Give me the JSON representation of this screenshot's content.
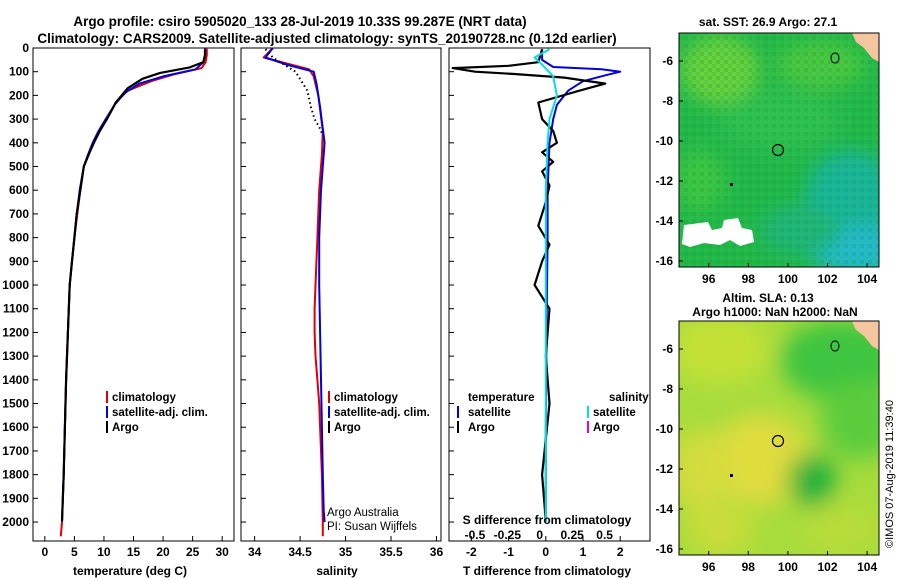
{
  "title": {
    "line1": "Argo profile: csiro 5905020_133 28-Jul-2019 10.33S 99.287E (NRT data)",
    "line2": "Climatology: CARS2009. Satellite-adjusted climatology: synTS_20190728.nc (0.12d earlier)"
  },
  "colors": {
    "climatology": "#e00000",
    "satellite": "#0000e0",
    "argo": "#000000",
    "sat_salinity": "#00e0e0",
    "argo_salinity": "#e000e0"
  },
  "depth_axis": {
    "ticks": [
      "0",
      "100",
      "200",
      "300",
      "400",
      "500",
      "600",
      "700",
      "800",
      "900",
      "1000",
      "1100",
      "1200",
      "1300",
      "1400",
      "1500",
      "1600",
      "1700",
      "1800",
      "1900",
      "2000"
    ]
  },
  "temp_panel": {
    "xlabel": "temperature (deg C)",
    "xticks": [
      "0",
      "5",
      "10",
      "15",
      "20",
      "25",
      "30"
    ],
    "legend": [
      "climatology",
      "satellite-adj. clim.",
      "Argo"
    ]
  },
  "sal_panel": {
    "xlabel": "salinity",
    "xticks": [
      "34",
      "34.5",
      "35",
      "35.5",
      "36"
    ],
    "legend": [
      "climatology",
      "satellite-adj. clim.",
      "Argo"
    ],
    "credit1": "Argo Australia",
    "credit2": "PI: Susan Wijffels"
  },
  "diff_panel": {
    "xlabel": "T difference from climatology",
    "xticks": [
      "-2",
      "-1",
      "0",
      "1",
      "2"
    ],
    "s_label": "S difference from climatology",
    "s_ticks": [
      "-0.5",
      "-0.25",
      "0",
      "0.25",
      "0.5"
    ],
    "legend_t_head": "temperature",
    "legend_s_head": "salinity",
    "legend_t": [
      "satellite",
      "Argo"
    ],
    "legend_s": [
      "satellite",
      "Argo"
    ]
  },
  "map1": {
    "title": "sat. SST: 26.9 Argo: 27.1",
    "xticks": [
      "96",
      "98",
      "100",
      "102",
      "104"
    ],
    "yticks": [
      "-6",
      "-8",
      "-10",
      "-12",
      "-14",
      "-16"
    ]
  },
  "map2": {
    "title1": "Altim. SLA: 0.13",
    "title2": "Argo h1000: NaN h2000: NaN",
    "xticks": [
      "96",
      "98",
      "100",
      "102",
      "104"
    ],
    "yticks": [
      "-6",
      "-8",
      "-10",
      "-12",
      "-14",
      "-16"
    ]
  },
  "side_label": "©IMOS 07-Aug-2019 11:39:40",
  "chart_data": [
    {
      "type": "line",
      "title": "",
      "xlabel": "temperature (deg C)",
      "ylabel": "",
      "xlim": [
        -2,
        32
      ],
      "ylim": [
        2080,
        0
      ],
      "series": [
        {
          "name": "climatology",
          "x": [
            27.4,
            27.4,
            27.2,
            26.5,
            22,
            18,
            14,
            12,
            10.5,
            9.2,
            8.2,
            7.4,
            6.6,
            6.0,
            5.5,
            5.0,
            4.6,
            4.2,
            3.9,
            3.6,
            3.4,
            3.2,
            2.9,
            2.7
          ],
          "depth": [
            0,
            30,
            60,
            85,
            110,
            140,
            180,
            230,
            300,
            350,
            400,
            450,
            500,
            600,
            700,
            800,
            900,
            1000,
            1200,
            1400,
            1600,
            1800,
            2000,
            2060
          ]
        },
        {
          "name": "satellite-adj. clim.",
          "x": [
            27.1,
            27.1,
            26.8,
            25.5,
            20,
            16,
            13.5,
            11.8,
            10.3,
            9.1,
            8.1,
            7.3,
            6.6,
            5.9,
            5.4,
            5.0,
            4.6,
            4.2,
            3.9,
            3.6,
            3.4,
            3.2,
            2.9
          ],
          "depth": [
            0,
            30,
            60,
            90,
            120,
            150,
            190,
            240,
            300,
            350,
            400,
            450,
            500,
            600,
            700,
            800,
            900,
            1000,
            1200,
            1400,
            1600,
            1800,
            2000
          ]
        },
        {
          "name": "Argo",
          "x": [
            27.1,
            27.1,
            26.8,
            24.5,
            19.5,
            16.5,
            14,
            12,
            10.5,
            9.3,
            8.3,
            7.4,
            6.6,
            6.0,
            5.4,
            5.0,
            4.6,
            4.2,
            3.9,
            3.6,
            3.4,
            3.2,
            2.9
          ],
          "depth": [
            5,
            30,
            60,
            82,
            105,
            130,
            170,
            230,
            300,
            350,
            400,
            450,
            500,
            600,
            700,
            800,
            900,
            1000,
            1200,
            1400,
            1600,
            1800,
            1995
          ]
        }
      ]
    },
    {
      "type": "line",
      "title": "",
      "xlabel": "salinity",
      "ylabel": "",
      "xlim": [
        33.85,
        36.05
      ],
      "ylim": [
        2080,
        0
      ],
      "series": [
        {
          "name": "climatology",
          "x": [
            34.2,
            34.1,
            34.4,
            34.6,
            34.65,
            34.7,
            34.75,
            34.74,
            34.71,
            34.69,
            34.67,
            34.66,
            34.66,
            34.67,
            34.69,
            34.71,
            34.72,
            34.74,
            34.75,
            34.75
          ],
          "depth": [
            0,
            40,
            70,
            90,
            120,
            200,
            350,
            450,
            600,
            800,
            1000,
            1100,
            1200,
            1300,
            1400,
            1500,
            1600,
            1800,
            2000,
            2060
          ]
        },
        {
          "name": "satellite-adj. clim.",
          "x": [
            34.2,
            34.12,
            34.35,
            34.65,
            34.68,
            34.72,
            34.77,
            34.75,
            34.73,
            34.72,
            34.71,
            34.71,
            34.72,
            34.73,
            34.74,
            34.75,
            34.76,
            34.77
          ],
          "depth": [
            0,
            40,
            70,
            100,
            150,
            250,
            400,
            500,
            600,
            700,
            800,
            1000,
            1200,
            1400,
            1600,
            1800,
            1950,
            2000
          ]
        },
        {
          "name": "Argo",
          "x": [
            34.12,
            34.2,
            34.45,
            34.58,
            34.62,
            34.66,
            34.72,
            34.75
          ],
          "depth": [
            5,
            40,
            100,
            180,
            250,
            300,
            340,
            370
          ]
        }
      ]
    },
    {
      "type": "line",
      "title": "",
      "xlabel": "T difference from climatology",
      "ylabel": "",
      "xlim": [
        -2.6,
        2.8
      ],
      "ylim": [
        2080,
        0
      ],
      "series": [
        {
          "name": "satellite (temperature)",
          "x": [
            -0.1,
            -0.1,
            0.2,
            1.5,
            2.0,
            1.6,
            1.0,
            0.6,
            0.3,
            0.2,
            0.1,
            0.05,
            0.05,
            0.02,
            0.0,
            0.0
          ],
          "depth": [
            5,
            50,
            80,
            90,
            100,
            115,
            140,
            180,
            240,
            300,
            400,
            600,
            800,
            1200,
            1600,
            2000
          ]
        },
        {
          "name": "Argo (temperature)",
          "x": [
            -0.1,
            -0.2,
            -1.0,
            -2.5,
            -1.9,
            -0.8,
            0.5,
            1.6,
            0.9,
            -0.2,
            -0.1,
            0.2,
            0.3,
            -0.1,
            0.2,
            -0.1,
            0.1,
            0.0,
            -0.2,
            0.1,
            -0.1,
            -0.3,
            0.1,
            0.0,
            0.1,
            -0.1,
            0.0
          ],
          "depth": [
            5,
            60,
            75,
            85,
            100,
            110,
            125,
            150,
            180,
            230,
            300,
            350,
            400,
            440,
            480,
            520,
            580,
            650,
            750,
            830,
            900,
            1000,
            1100,
            1300,
            1500,
            1800,
            1995
          ]
        },
        {
          "name": "satellite (salinity)",
          "x": [
            0.1,
            -0.3,
            -0.1,
            0.2,
            0.3,
            0.1,
            0.05,
            0.0,
            0.0,
            0.0,
            0.0
          ],
          "depth": [
            5,
            40,
            70,
            120,
            200,
            300,
            400,
            600,
            800,
            1400,
            2000
          ]
        }
      ],
      "s_xlim": [
        -0.7,
        0.85
      ]
    },
    {
      "type": "heatmap",
      "title": "sat. SST: 26.9 Argo: 27.1",
      "xlim": [
        94.5,
        104.6
      ],
      "ylim": [
        -16.3,
        -4.6
      ],
      "argo_position": {
        "lon": 99.287,
        "lat": -10.33
      }
    },
    {
      "type": "heatmap",
      "title": "Altim. SLA: 0.13 / Argo h1000: NaN h2000: NaN",
      "xlim": [
        94.5,
        104.6
      ],
      "ylim": [
        -16.3,
        -4.6
      ],
      "argo_position": {
        "lon": 99.287,
        "lat": -10.33
      }
    }
  ]
}
